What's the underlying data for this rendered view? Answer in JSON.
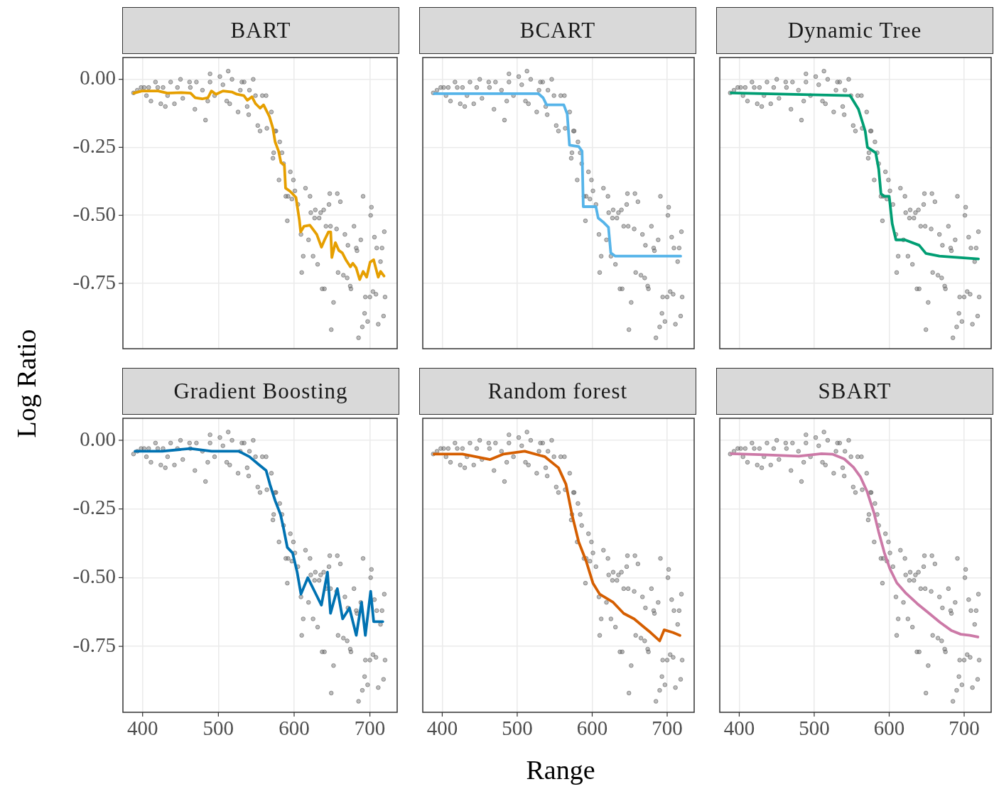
{
  "chart_data": [
    {
      "type": "scatter",
      "title": "BART",
      "ylabel": "Log Ratio",
      "xlim": [
        374,
        736
      ],
      "ylim": [
        -0.99,
        0.08
      ],
      "xticks": [
        400,
        500,
        600,
        700
      ],
      "yticks": [
        {
          "value": 0,
          "label": "0.00"
        },
        {
          "value": -0.25,
          "label": "-0.25"
        },
        {
          "value": -0.5,
          "label": "-0.50"
        },
        {
          "value": -0.75,
          "label": "-0.75"
        }
      ],
      "grid": true,
      "tick_labels": "y",
      "series": [
        {
          "type": "scatter",
          "marker": "circle",
          "color": "#666666",
          "x": [
            388,
            393,
            398,
            402,
            405,
            408,
            411,
            417,
            420,
            424,
            427,
            430,
            433,
            437,
            442,
            446,
            450,
            453,
            462,
            463,
            469,
            471,
            479,
            483,
            486,
            489,
            489,
            495,
            502,
            506,
            511,
            513,
            515,
            518,
            526,
            529,
            531,
            534,
            538,
            540,
            541,
            546,
            549,
            552,
            555,
            558,
            563,
            564,
            570,
            575,
            576,
            581,
            573,
            572,
            584,
            586,
            580,
            595,
            599,
            589,
            592,
            601,
            597,
            605,
            591,
            609,
            610,
            612,
            615,
            621,
            622,
            628,
            627,
            619,
            625,
            631,
            633,
            635,
            639,
            642,
            646,
            647,
            648,
            637,
            640,
            649,
            652,
            656,
            657,
            658,
            661,
            667,
            665,
            670,
            671,
            674,
            675,
            679,
            682,
            683,
            685,
            688,
            690,
            691,
            694,
            693,
            697,
            700,
            701,
            702,
            704,
            706,
            708,
            709,
            711,
            714,
            716,
            718,
            719,
            720
          ],
          "values": [
            -0.05,
            -0.04,
            -0.03,
            -0.03,
            -0.06,
            -0.03,
            -0.08,
            -0.01,
            -0.03,
            -0.09,
            -0.03,
            -0.1,
            -0.06,
            -0.01,
            -0.09,
            -0.03,
            0,
            -0.07,
            -0.01,
            -0.03,
            -0.11,
            -0.01,
            -0.04,
            -0.15,
            -0.08,
            0.02,
            -0.01,
            -0.06,
            0.01,
            -0.02,
            -0.08,
            0.03,
            -0.09,
            0,
            -0.12,
            -0.04,
            -0.01,
            -0.01,
            -0.1,
            -0.13,
            -0.04,
            0,
            -0.06,
            -0.17,
            -0.19,
            -0.06,
            -0.06,
            -0.18,
            -0.12,
            -0.19,
            -0.19,
            -0.23,
            -0.27,
            -0.29,
            -0.27,
            -0.31,
            -0.37,
            -0.34,
            -0.37,
            -0.43,
            -0.43,
            -0.41,
            -0.44,
            -0.46,
            -0.52,
            -0.57,
            -0.71,
            -0.65,
            -0.4,
            -0.43,
            -0.49,
            -0.48,
            -0.51,
            -0.59,
            -0.65,
            -0.68,
            -0.51,
            -0.49,
            -0.48,
            -0.54,
            -0.46,
            -0.42,
            -0.54,
            -0.77,
            -0.77,
            -0.92,
            -0.82,
            -0.55,
            -0.42,
            -0.71,
            -0.45,
            -0.57,
            -0.72,
            -0.73,
            -0.61,
            -0.76,
            -0.77,
            -0.54,
            -0.62,
            -0.63,
            -0.95,
            -0.59,
            -0.91,
            -0.43,
            -0.8,
            -0.86,
            -0.89,
            -0.8,
            -0.5,
            -0.47,
            -0.78,
            -0.58,
            -0.79,
            -0.62,
            -0.9,
            -0.67,
            -0.62,
            -0.87,
            -0.56,
            -0.8
          ]
        },
        {
          "type": "line",
          "line_style": "solid",
          "color": "#e69f00",
          "x": [
            388.4,
            399.1,
            420.5,
            432.7,
            451.1,
            463.3,
            469.4,
            478.6,
            486.2,
            490.8,
            496.9,
            506.1,
            518.3,
            524.5,
            533.6,
            538.2,
            544.3,
            548.9,
            555.0,
            559.6,
            567.3,
            571.9,
            574.9,
            579.5,
            582.6,
            587.1,
            588.7,
            594.8,
            602.4,
            607.0,
            608.6,
            613.1,
            620.8,
            625.4,
            629.9,
            636.1,
            640.7,
            645.3,
            648.3,
            649.8,
            654.4,
            659.0,
            663.6,
            668.2,
            674.3,
            677.4,
            681.9,
            686.5,
            691.1,
            695.7,
            700.3,
            704.9,
            711.0,
            714.1,
            718.6
          ],
          "values": [
            -0.051,
            -0.043,
            -0.043,
            -0.051,
            -0.049,
            -0.051,
            -0.068,
            -0.072,
            -0.068,
            -0.043,
            -0.055,
            -0.043,
            -0.047,
            -0.055,
            -0.06,
            -0.077,
            -0.064,
            -0.089,
            -0.106,
            -0.094,
            -0.136,
            -0.179,
            -0.23,
            -0.264,
            -0.306,
            -0.315,
            -0.4,
            -0.412,
            -0.434,
            -0.519,
            -0.561,
            -0.54,
            -0.536,
            -0.553,
            -0.57,
            -0.617,
            -0.587,
            -0.561,
            -0.561,
            -0.655,
            -0.6,
            -0.629,
            -0.638,
            -0.663,
            -0.689,
            -0.676,
            -0.693,
            -0.736,
            -0.706,
            -0.727,
            -0.672,
            -0.663,
            -0.727,
            -0.706,
            -0.723
          ]
        }
      ]
    },
    {
      "type": "scatter",
      "title": "BCART",
      "xlim": [
        374,
        736
      ],
      "ylim": [
        -0.99,
        0.08
      ],
      "xticks": [
        400,
        500,
        600,
        700
      ],
      "yticks": [
        0,
        -0.25,
        -0.5,
        -0.75
      ],
      "grid": true,
      "tick_labels": false,
      "series": [
        {
          "type": "scatter",
          "marker": "circle",
          "color": "#666666",
          "x": [
            388,
            393,
            398,
            402,
            405,
            408,
            411,
            417,
            420,
            424,
            427,
            430,
            433,
            437,
            442,
            446,
            450,
            453,
            462,
            463,
            469,
            471,
            479,
            483,
            486,
            489,
            489,
            495,
            502,
            506,
            511,
            513,
            515,
            518,
            526,
            529,
            531,
            534,
            538,
            540,
            541,
            546,
            549,
            552,
            555,
            558,
            563,
            564,
            570,
            575,
            576,
            581,
            573,
            572,
            584,
            586,
            580,
            595,
            599,
            589,
            592,
            601,
            597,
            605,
            591,
            609,
            610,
            612,
            615,
            621,
            622,
            628,
            627,
            619,
            625,
            631,
            633,
            635,
            639,
            642,
            646,
            647,
            648,
            637,
            640,
            649,
            652,
            656,
            657,
            658,
            661,
            667,
            665,
            670,
            671,
            674,
            675,
            679,
            682,
            683,
            685,
            688,
            690,
            691,
            694,
            693,
            697,
            700,
            701,
            702,
            704,
            706,
            708,
            709,
            711,
            714,
            716,
            718,
            719,
            720
          ],
          "values": [
            -0.05,
            -0.04,
            -0.03,
            -0.03,
            -0.06,
            -0.03,
            -0.08,
            -0.01,
            -0.03,
            -0.09,
            -0.03,
            -0.1,
            -0.06,
            -0.01,
            -0.09,
            -0.03,
            0,
            -0.07,
            -0.01,
            -0.03,
            -0.11,
            -0.01,
            -0.04,
            -0.15,
            -0.08,
            0.02,
            -0.01,
            -0.06,
            0.01,
            -0.02,
            -0.08,
            0.03,
            -0.09,
            0,
            -0.12,
            -0.04,
            -0.01,
            -0.01,
            -0.1,
            -0.13,
            -0.04,
            0,
            -0.06,
            -0.17,
            -0.19,
            -0.06,
            -0.06,
            -0.18,
            -0.12,
            -0.19,
            -0.19,
            -0.23,
            -0.27,
            -0.29,
            -0.27,
            -0.31,
            -0.37,
            -0.34,
            -0.37,
            -0.43,
            -0.43,
            -0.41,
            -0.44,
            -0.46,
            -0.52,
            -0.57,
            -0.71,
            -0.65,
            -0.4,
            -0.43,
            -0.49,
            -0.48,
            -0.51,
            -0.59,
            -0.65,
            -0.68,
            -0.51,
            -0.49,
            -0.48,
            -0.54,
            -0.46,
            -0.42,
            -0.54,
            -0.77,
            -0.77,
            -0.92,
            -0.82,
            -0.55,
            -0.42,
            -0.71,
            -0.45,
            -0.57,
            -0.72,
            -0.73,
            -0.61,
            -0.76,
            -0.77,
            -0.54,
            -0.62,
            -0.63,
            -0.95,
            -0.59,
            -0.91,
            -0.43,
            -0.8,
            -0.86,
            -0.89,
            -0.8,
            -0.5,
            -0.47,
            -0.78,
            -0.58,
            -0.79,
            -0.62,
            -0.9,
            -0.67,
            -0.62,
            -0.87,
            -0.56,
            -0.8
          ]
        },
        {
          "type": "line",
          "line_style": "solid",
          "color": "#56b4e9",
          "x": [
            389.3,
            528.4,
            534.6,
            539.1,
            562.1,
            566.7,
            569.7,
            582.0,
            586.5,
            588.1,
            604.9,
            608.0,
            615.6,
            621.7,
            624.8,
            630.9,
            718.0
          ],
          "values": [
            -0.053,
            -0.053,
            -0.068,
            -0.094,
            -0.094,
            -0.128,
            -0.242,
            -0.247,
            -0.264,
            -0.468,
            -0.468,
            -0.51,
            -0.527,
            -0.544,
            -0.638,
            -0.65,
            -0.65
          ]
        }
      ]
    },
    {
      "type": "scatter",
      "title": "Dynamic Tree",
      "xlim": [
        374,
        736
      ],
      "ylim": [
        -0.99,
        0.08
      ],
      "xticks": [
        400,
        500,
        600,
        700
      ],
      "yticks": [
        0,
        -0.25,
        -0.5,
        -0.75
      ],
      "grid": true,
      "tick_labels": false,
      "series": [
        {
          "type": "scatter",
          "marker": "circle",
          "color": "#666666",
          "x": [
            388,
            393,
            398,
            402,
            405,
            408,
            411,
            417,
            420,
            424,
            427,
            430,
            433,
            437,
            442,
            446,
            450,
            453,
            462,
            463,
            469,
            471,
            479,
            483,
            486,
            489,
            489,
            495,
            502,
            506,
            511,
            513,
            515,
            518,
            526,
            529,
            531,
            534,
            538,
            540,
            541,
            546,
            549,
            552,
            555,
            558,
            563,
            564,
            570,
            575,
            576,
            581,
            573,
            572,
            584,
            586,
            580,
            595,
            599,
            589,
            592,
            601,
            597,
            605,
            591,
            609,
            610,
            612,
            615,
            621,
            622,
            628,
            627,
            619,
            625,
            631,
            633,
            635,
            639,
            642,
            646,
            647,
            648,
            637,
            640,
            649,
            652,
            656,
            657,
            658,
            661,
            667,
            665,
            670,
            671,
            674,
            675,
            679,
            682,
            683,
            685,
            688,
            690,
            691,
            694,
            693,
            697,
            700,
            701,
            702,
            704,
            706,
            708,
            709,
            711,
            714,
            716,
            718,
            719,
            720
          ],
          "values": [
            -0.05,
            -0.04,
            -0.03,
            -0.03,
            -0.06,
            -0.03,
            -0.08,
            -0.01,
            -0.03,
            -0.09,
            -0.03,
            -0.1,
            -0.06,
            -0.01,
            -0.09,
            -0.03,
            0,
            -0.07,
            -0.01,
            -0.03,
            -0.11,
            -0.01,
            -0.04,
            -0.15,
            -0.08,
            0.02,
            -0.01,
            -0.06,
            0.01,
            -0.02,
            -0.08,
            0.03,
            -0.09,
            0,
            -0.12,
            -0.04,
            -0.01,
            -0.01,
            -0.1,
            -0.13,
            -0.04,
            0,
            -0.06,
            -0.17,
            -0.19,
            -0.06,
            -0.06,
            -0.18,
            -0.12,
            -0.19,
            -0.19,
            -0.23,
            -0.27,
            -0.29,
            -0.27,
            -0.31,
            -0.37,
            -0.34,
            -0.37,
            -0.43,
            -0.43,
            -0.41,
            -0.44,
            -0.46,
            -0.52,
            -0.57,
            -0.71,
            -0.65,
            -0.4,
            -0.43,
            -0.49,
            -0.48,
            -0.51,
            -0.59,
            -0.65,
            -0.68,
            -0.51,
            -0.49,
            -0.48,
            -0.54,
            -0.46,
            -0.42,
            -0.54,
            -0.77,
            -0.77,
            -0.92,
            -0.82,
            -0.55,
            -0.42,
            -0.71,
            -0.45,
            -0.57,
            -0.72,
            -0.73,
            -0.61,
            -0.76,
            -0.77,
            -0.54,
            -0.62,
            -0.63,
            -0.95,
            -0.59,
            -0.91,
            -0.43,
            -0.8,
            -0.86,
            -0.89,
            -0.8,
            -0.5,
            -0.47,
            -0.78,
            -0.58,
            -0.79,
            -0.62,
            -0.9,
            -0.67,
            -0.62,
            -0.87,
            -0.56,
            -0.8
          ]
        },
        {
          "type": "line",
          "line_style": "solid",
          "color": "#009e73",
          "x": [
            389,
            548,
            559,
            568,
            571,
            582,
            586,
            589,
            593,
            600,
            604,
            609,
            621,
            640,
            649,
            667,
            719
          ],
          "values": [
            -0.05,
            -0.06,
            -0.11,
            -0.19,
            -0.25,
            -0.27,
            -0.33,
            -0.42,
            -0.43,
            -0.43,
            -0.53,
            -0.59,
            -0.59,
            -0.61,
            -0.64,
            -0.65,
            -0.66
          ]
        }
      ]
    },
    {
      "type": "scatter",
      "title": "Gradient Boosting",
      "xlim": [
        374,
        736
      ],
      "ylim": [
        -0.99,
        0.08
      ],
      "xticks": [
        400,
        500,
        600,
        700
      ],
      "yticks": [
        {
          "value": 0,
          "label": "0.00"
        },
        {
          "value": -0.25,
          "label": "-0.25"
        },
        {
          "value": -0.5,
          "label": "-0.50"
        },
        {
          "value": -0.75,
          "label": "-0.75"
        }
      ],
      "grid": true,
      "series": [
        {
          "type": "scatter",
          "marker": "circle",
          "color": "#666666",
          "x": [
            388,
            393,
            398,
            402,
            405,
            408,
            411,
            417,
            420,
            424,
            427,
            430,
            433,
            437,
            442,
            446,
            450,
            453,
            462,
            463,
            469,
            471,
            479,
            483,
            486,
            489,
            489,
            495,
            502,
            506,
            511,
            513,
            515,
            518,
            526,
            529,
            531,
            534,
            538,
            540,
            541,
            546,
            549,
            552,
            555,
            558,
            563,
            564,
            570,
            575,
            576,
            581,
            573,
            572,
            584,
            586,
            580,
            595,
            599,
            589,
            592,
            601,
            597,
            605,
            591,
            609,
            610,
            612,
            615,
            621,
            622,
            628,
            627,
            619,
            625,
            631,
            633,
            635,
            639,
            642,
            646,
            647,
            648,
            637,
            640,
            649,
            652,
            656,
            657,
            658,
            661,
            667,
            665,
            670,
            671,
            674,
            675,
            679,
            682,
            683,
            685,
            688,
            690,
            691,
            694,
            693,
            697,
            700,
            701,
            702,
            704,
            706,
            708,
            709,
            711,
            714,
            716,
            718,
            719,
            720
          ],
          "values": [
            -0.05,
            -0.04,
            -0.03,
            -0.03,
            -0.06,
            -0.03,
            -0.08,
            -0.01,
            -0.03,
            -0.09,
            -0.03,
            -0.1,
            -0.06,
            -0.01,
            -0.09,
            -0.03,
            0,
            -0.07,
            -0.01,
            -0.03,
            -0.11,
            -0.01,
            -0.04,
            -0.15,
            -0.08,
            0.02,
            -0.01,
            -0.06,
            0.01,
            -0.02,
            -0.08,
            0.03,
            -0.09,
            0,
            -0.12,
            -0.04,
            -0.01,
            -0.01,
            -0.1,
            -0.13,
            -0.04,
            0,
            -0.06,
            -0.17,
            -0.19,
            -0.06,
            -0.06,
            -0.18,
            -0.12,
            -0.19,
            -0.19,
            -0.23,
            -0.27,
            -0.29,
            -0.27,
            -0.31,
            -0.37,
            -0.34,
            -0.37,
            -0.43,
            -0.43,
            -0.41,
            -0.44,
            -0.46,
            -0.52,
            -0.57,
            -0.71,
            -0.65,
            -0.4,
            -0.43,
            -0.49,
            -0.48,
            -0.51,
            -0.59,
            -0.65,
            -0.68,
            -0.51,
            -0.49,
            -0.48,
            -0.54,
            -0.46,
            -0.42,
            -0.54,
            -0.77,
            -0.77,
            -0.92,
            -0.82,
            -0.55,
            -0.42,
            -0.71,
            -0.45,
            -0.57,
            -0.72,
            -0.73,
            -0.61,
            -0.76,
            -0.77,
            -0.54,
            -0.62,
            -0.63,
            -0.95,
            -0.59,
            -0.91,
            -0.43,
            -0.8,
            -0.86,
            -0.89,
            -0.8,
            -0.5,
            -0.47,
            -0.78,
            -0.58,
            -0.79,
            -0.62,
            -0.9,
            -0.67,
            -0.62,
            -0.87,
            -0.56,
            -0.8
          ]
        },
        {
          "type": "line",
          "line_style": "solid",
          "color": "#0072b2",
          "x": [
            390,
            426,
            463,
            491,
            527,
            541,
            554,
            563,
            568,
            575,
            582,
            586,
            591,
            598,
            604,
            609,
            618,
            627,
            636,
            644,
            648,
            657,
            664,
            673,
            682,
            689,
            694,
            701,
            705,
            717
          ],
          "values": [
            -0.04,
            -0.04,
            -0.03,
            -0.04,
            -0.04,
            -0.06,
            -0.09,
            -0.11,
            -0.16,
            -0.22,
            -0.27,
            -0.32,
            -0.39,
            -0.41,
            -0.48,
            -0.56,
            -0.5,
            -0.55,
            -0.6,
            -0.48,
            -0.63,
            -0.54,
            -0.65,
            -0.61,
            -0.71,
            -0.59,
            -0.71,
            -0.55,
            -0.66,
            -0.66
          ]
        }
      ]
    },
    {
      "type": "scatter",
      "title": "Random forest",
      "xlabel": "Range",
      "xlim": [
        374,
        736
      ],
      "ylim": [
        -0.99,
        0.08
      ],
      "xticks": [
        400,
        500,
        600,
        700
      ],
      "yticks": [
        0,
        -0.25,
        -0.5,
        -0.75
      ],
      "grid": true,
      "tick_labels": "x",
      "series": [
        {
          "type": "scatter",
          "marker": "circle",
          "color": "#666666",
          "x": [
            388,
            393,
            398,
            402,
            405,
            408,
            411,
            417,
            420,
            424,
            427,
            430,
            433,
            437,
            442,
            446,
            450,
            453,
            462,
            463,
            469,
            471,
            479,
            483,
            486,
            489,
            489,
            495,
            502,
            506,
            511,
            513,
            515,
            518,
            526,
            529,
            531,
            534,
            538,
            540,
            541,
            546,
            549,
            552,
            555,
            558,
            563,
            564,
            570,
            575,
            576,
            581,
            573,
            572,
            584,
            586,
            580,
            595,
            599,
            589,
            592,
            601,
            597,
            605,
            591,
            609,
            610,
            612,
            615,
            621,
            622,
            628,
            627,
            619,
            625,
            631,
            633,
            635,
            639,
            642,
            646,
            647,
            648,
            637,
            640,
            649,
            652,
            656,
            657,
            658,
            661,
            667,
            665,
            670,
            671,
            674,
            675,
            679,
            682,
            683,
            685,
            688,
            690,
            691,
            694,
            693,
            697,
            700,
            701,
            702,
            704,
            706,
            708,
            709,
            711,
            714,
            716,
            718,
            719,
            720
          ],
          "values": [
            -0.05,
            -0.04,
            -0.03,
            -0.03,
            -0.06,
            -0.03,
            -0.08,
            -0.01,
            -0.03,
            -0.09,
            -0.03,
            -0.1,
            -0.06,
            -0.01,
            -0.09,
            -0.03,
            0,
            -0.07,
            -0.01,
            -0.03,
            -0.11,
            -0.01,
            -0.04,
            -0.15,
            -0.08,
            0.02,
            -0.01,
            -0.06,
            0.01,
            -0.02,
            -0.08,
            0.03,
            -0.09,
            0,
            -0.12,
            -0.04,
            -0.01,
            -0.01,
            -0.1,
            -0.13,
            -0.04,
            0,
            -0.06,
            -0.17,
            -0.19,
            -0.06,
            -0.06,
            -0.18,
            -0.12,
            -0.19,
            -0.19,
            -0.23,
            -0.27,
            -0.29,
            -0.27,
            -0.31,
            -0.37,
            -0.34,
            -0.37,
            -0.43,
            -0.43,
            -0.41,
            -0.44,
            -0.46,
            -0.52,
            -0.57,
            -0.71,
            -0.65,
            -0.4,
            -0.43,
            -0.49,
            -0.48,
            -0.51,
            -0.59,
            -0.65,
            -0.68,
            -0.51,
            -0.49,
            -0.48,
            -0.54,
            -0.46,
            -0.42,
            -0.54,
            -0.77,
            -0.77,
            -0.92,
            -0.82,
            -0.55,
            -0.42,
            -0.71,
            -0.45,
            -0.57,
            -0.72,
            -0.73,
            -0.61,
            -0.76,
            -0.77,
            -0.54,
            -0.62,
            -0.63,
            -0.95,
            -0.59,
            -0.91,
            -0.43,
            -0.8,
            -0.86,
            -0.89,
            -0.8,
            -0.5,
            -0.47,
            -0.78,
            -0.58,
            -0.79,
            -0.62,
            -0.9,
            -0.67,
            -0.62,
            -0.87,
            -0.56,
            -0.8
          ]
        },
        {
          "type": "line",
          "line_style": "solid",
          "color": "#d55e00",
          "x": [
            389,
            427,
            464,
            482,
            510,
            537,
            555,
            565,
            573,
            582,
            592,
            601,
            610,
            628,
            642,
            656,
            669,
            678,
            690,
            696,
            708,
            717
          ],
          "values": [
            -0.05,
            -0.05,
            -0.07,
            -0.05,
            -0.04,
            -0.06,
            -0.1,
            -0.16,
            -0.27,
            -0.37,
            -0.44,
            -0.52,
            -0.56,
            -0.59,
            -0.63,
            -0.65,
            -0.68,
            -0.7,
            -0.73,
            -0.69,
            -0.7,
            -0.71
          ]
        }
      ]
    },
    {
      "type": "scatter",
      "title": "SBART",
      "xlim": [
        374,
        736
      ],
      "ylim": [
        -0.99,
        0.08
      ],
      "xticks": [
        400,
        500,
        600,
        700
      ],
      "yticks": [
        0,
        -0.25,
        -0.5,
        -0.75
      ],
      "grid": true,
      "tick_labels": "x",
      "series": [
        {
          "type": "scatter",
          "marker": "circle",
          "color": "#666666",
          "x": [
            388,
            393,
            398,
            402,
            405,
            408,
            411,
            417,
            420,
            424,
            427,
            430,
            433,
            437,
            442,
            446,
            450,
            453,
            462,
            463,
            469,
            471,
            479,
            483,
            486,
            489,
            489,
            495,
            502,
            506,
            511,
            513,
            515,
            518,
            526,
            529,
            531,
            534,
            538,
            540,
            541,
            546,
            549,
            552,
            555,
            558,
            563,
            564,
            570,
            575,
            576,
            581,
            573,
            572,
            584,
            586,
            580,
            595,
            599,
            589,
            592,
            601,
            597,
            605,
            591,
            609,
            610,
            612,
            615,
            621,
            622,
            628,
            627,
            619,
            625,
            631,
            633,
            635,
            639,
            642,
            646,
            647,
            648,
            637,
            640,
            649,
            652,
            656,
            657,
            658,
            661,
            667,
            665,
            670,
            671,
            674,
            675,
            679,
            682,
            683,
            685,
            688,
            690,
            691,
            694,
            693,
            697,
            700,
            701,
            702,
            704,
            706,
            708,
            709,
            711,
            714,
            716,
            718,
            719,
            720
          ],
          "values": [
            -0.05,
            -0.04,
            -0.03,
            -0.03,
            -0.06,
            -0.03,
            -0.08,
            -0.01,
            -0.03,
            -0.09,
            -0.03,
            -0.1,
            -0.06,
            -0.01,
            -0.09,
            -0.03,
            0,
            -0.07,
            -0.01,
            -0.03,
            -0.11,
            -0.01,
            -0.04,
            -0.15,
            -0.08,
            0.02,
            -0.01,
            -0.06,
            0.01,
            -0.02,
            -0.08,
            0.03,
            -0.09,
            0,
            -0.12,
            -0.04,
            -0.01,
            -0.01,
            -0.1,
            -0.13,
            -0.04,
            0,
            -0.06,
            -0.17,
            -0.19,
            -0.06,
            -0.06,
            -0.18,
            -0.12,
            -0.19,
            -0.19,
            -0.23,
            -0.27,
            -0.29,
            -0.27,
            -0.31,
            -0.37,
            -0.34,
            -0.37,
            -0.43,
            -0.43,
            -0.41,
            -0.44,
            -0.46,
            -0.52,
            -0.57,
            -0.71,
            -0.65,
            -0.4,
            -0.43,
            -0.49,
            -0.48,
            -0.51,
            -0.59,
            -0.65,
            -0.68,
            -0.51,
            -0.49,
            -0.48,
            -0.54,
            -0.46,
            -0.42,
            -0.54,
            -0.77,
            -0.77,
            -0.92,
            -0.82,
            -0.55,
            -0.42,
            -0.71,
            -0.45,
            -0.57,
            -0.72,
            -0.73,
            -0.61,
            -0.76,
            -0.77,
            -0.54,
            -0.62,
            -0.63,
            -0.95,
            -0.59,
            -0.91,
            -0.43,
            -0.8,
            -0.86,
            -0.89,
            -0.8,
            -0.5,
            -0.47,
            -0.78,
            -0.58,
            -0.79,
            -0.62,
            -0.9,
            -0.67,
            -0.62,
            -0.87,
            -0.56,
            -0.8
          ]
        },
        {
          "type": "line",
          "line_style": "solid",
          "color": "#cc79a7",
          "x": [
            389.3,
            433.5,
            479.2,
            509.7,
            524.9,
            540.1,
            552.3,
            561.4,
            570.6,
            579.7,
            585.8,
            593.4,
            601.0,
            610.2,
            622.4,
            637.6,
            652.8,
            668.0,
            683.3,
            695.5,
            707.6,
            718.3
          ],
          "values": [
            -0.049,
            -0.053,
            -0.058,
            -0.049,
            -0.051,
            -0.068,
            -0.098,
            -0.132,
            -0.187,
            -0.264,
            -0.332,
            -0.408,
            -0.468,
            -0.519,
            -0.557,
            -0.595,
            -0.629,
            -0.663,
            -0.693,
            -0.706,
            -0.71,
            -0.716
          ]
        }
      ]
    }
  ]
}
